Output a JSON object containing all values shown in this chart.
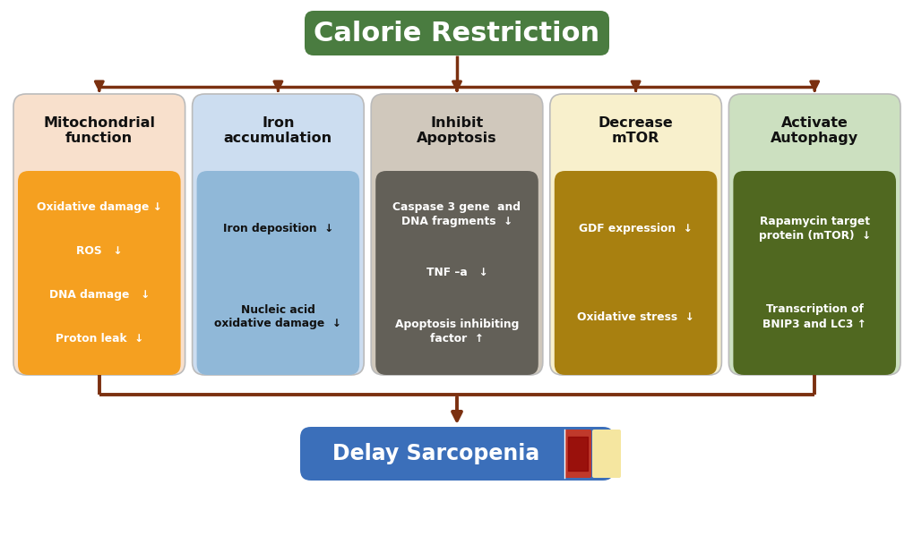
{
  "title": "Calorie Restriction",
  "title_bg": "#4a7c40",
  "title_text_color": "#ffffff",
  "bottom_label": "Delay Sarcopenia",
  "bottom_bg": "#3b6fba",
  "bottom_text_color": "#ffffff",
  "arrow_color": "#7b3010",
  "bg_color": "#ffffff",
  "columns": [
    {
      "header": "Mitochondrial\nfunction",
      "header_bg": "#f8e0cc",
      "header_text_color": "#111111",
      "body_bg": "#f5a020",
      "body_text_color": "#ffffff",
      "items": [
        "Oxidative damage ↓",
        "ROS   ↓",
        "DNA damage   ↓",
        "Proton leak  ↓"
      ]
    },
    {
      "header": "Iron\naccumulation",
      "header_bg": "#ccddf0",
      "header_text_color": "#111111",
      "body_bg": "#90b8d8",
      "body_text_color": "#111111",
      "items": [
        "Iron deposition  ↓",
        "Nucleic acid\noxidative damage  ↓"
      ]
    },
    {
      "header": "Inhibit\nApoptosis",
      "header_bg": "#d0c8bc",
      "header_text_color": "#111111",
      "body_bg": "#636058",
      "body_text_color": "#ffffff",
      "items": [
        "Caspase 3 gene  and\nDNA fragments  ↓",
        "TNF –a   ↓",
        "Apoptosis inhibiting\nfactor  ↑"
      ]
    },
    {
      "header": "Decrease\nmTOR",
      "header_bg": "#f8f0cc",
      "header_text_color": "#111111",
      "body_bg": "#a88010",
      "body_text_color": "#ffffff",
      "items": [
        "GDF expression  ↓",
        "Oxidative stress  ↓"
      ]
    },
    {
      "header": "Activate\nAutophagy",
      "header_bg": "#cce0c0",
      "header_text_color": "#111111",
      "body_bg": "#506820",
      "body_text_color": "#ffffff",
      "items": [
        "Rapamycin target\nprotein (mTOR)  ↓",
        "Transcription of\nBNIP3 and LC3 ↑"
      ]
    }
  ]
}
